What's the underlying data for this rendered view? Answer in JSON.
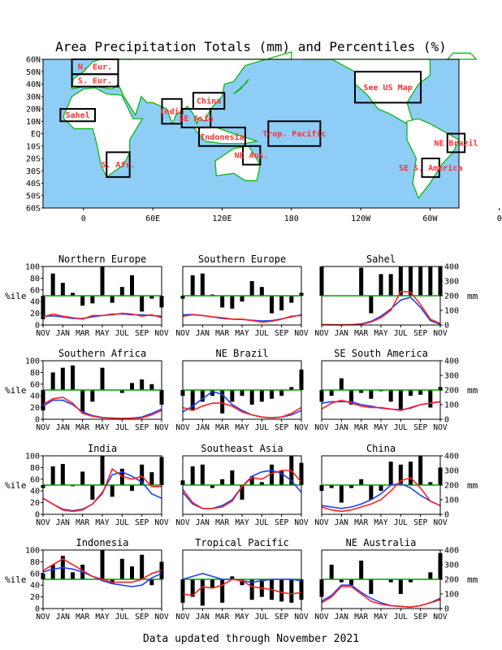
{
  "title": "Area Precipitation Totals (mm) and Percentiles (%)",
  "footer": "Data updated through November 2021",
  "map": {
    "lat_labels": [
      "60N",
      "50N",
      "40N",
      "30N",
      "20N",
      "10N",
      "EQ",
      "10S",
      "20S",
      "30S",
      "40S",
      "50S",
      "60S"
    ],
    "lon_labels": [
      "0",
      "60E",
      "120E",
      "180",
      "120W",
      "60W",
      "0"
    ],
    "colors": {
      "ocean": "#8ecdf5",
      "land": "#ffffff",
      "coast": "#00b400",
      "box": "#000000",
      "label": "#ff3030"
    },
    "regions": [
      {
        "label": "N. Eur.",
        "lon": [
          -10,
          30
        ],
        "lat": [
          48,
          60
        ]
      },
      {
        "label": "S. Eur.",
        "lon": [
          -10,
          30
        ],
        "lat": [
          38,
          48
        ]
      },
      {
        "label": "Sahel",
        "lon": [
          -20,
          10
        ],
        "lat": [
          10,
          20
        ]
      },
      {
        "label": "S. Afr.",
        "lon": [
          20,
          40
        ],
        "lat": [
          -35,
          -15
        ]
      },
      {
        "label": "India",
        "lon": [
          68,
          85
        ],
        "lat": [
          8,
          28
        ]
      },
      {
        "label": "China",
        "lon": [
          95,
          122
        ],
        "lat": [
          20,
          33
        ]
      },
      {
        "label": "SE Asia",
        "lon": [
          85,
          110
        ],
        "lat": [
          5,
          20
        ]
      },
      {
        "label": "Indonesia",
        "lon": [
          100,
          140
        ],
        "lat": [
          -10,
          5
        ]
      },
      {
        "label": "Trop. Pacific",
        "lon": [
          160,
          205
        ],
        "lat": [
          -10,
          10
        ]
      },
      {
        "label": "NE Aus.",
        "lon": [
          138,
          153
        ],
        "lat": [
          -25,
          -10
        ]
      },
      {
        "label": "See US Map",
        "lon": [
          235,
          292
        ],
        "lat": [
          25,
          50
        ]
      },
      {
        "label": "NE Brazil",
        "lon": [
          315,
          330
        ],
        "lat": [
          -15,
          0
        ]
      },
      {
        "label": "SE S. America",
        "lon": [
          293,
          308
        ],
        "lat": [
          -35,
          -20
        ]
      }
    ]
  },
  "chart_data": {
    "type": "bar+line",
    "months_label": [
      "NOV",
      "JAN",
      "MAR",
      "MAY",
      "JUL",
      "SEP",
      "NOV"
    ],
    "left_axis_label": "%ile",
    "right_axis_label": "mm",
    "left_ticks": [
      "0",
      "20",
      "40",
      "60",
      "80",
      "100"
    ],
    "right_ticks": [
      "0",
      "100",
      "200",
      "300",
      "400"
    ],
    "colors": {
      "bars": "#000000",
      "observed": "#ff2020",
      "normal": "#2040ff",
      "median_line": "#00a000"
    },
    "panels": [
      {
        "title": "Northern Europe",
        "percentile": [
          10,
          88,
          72,
          55,
          33,
          37,
          100,
          38,
          65,
          85,
          23,
          45,
          30
        ],
        "observed": [
          55,
          75,
          60,
          50,
          40,
          65,
          65,
          70,
          80,
          75,
          60,
          70,
          50
        ],
        "normal": [
          60,
          62,
          55,
          45,
          45,
          55,
          65,
          75,
          75,
          70,
          70,
          65,
          60
        ],
        "right": false,
        "left": true
      },
      {
        "title": "Southern Europe",
        "percentile": [
          45,
          85,
          88,
          52,
          30,
          28,
          40,
          75,
          65,
          20,
          25,
          38,
          55
        ],
        "observed": [
          60,
          70,
          65,
          55,
          50,
          40,
          40,
          30,
          20,
          25,
          40,
          60,
          65
        ],
        "normal": [
          70,
          72,
          65,
          55,
          45,
          40,
          38,
          32,
          28,
          30,
          42,
          55,
          70
        ],
        "right": false,
        "left": false
      },
      {
        "title": "Sahel",
        "percentile": [
          100,
          50,
          50,
          50,
          98,
          20,
          87,
          87,
          100,
          100,
          100,
          100,
          100
        ],
        "observed": [
          3,
          2,
          1,
          2,
          5,
          20,
          50,
          100,
          230,
          225,
          140,
          40,
          10
        ],
        "normal": [
          2,
          1,
          1,
          3,
          8,
          25,
          60,
          110,
          170,
          190,
          120,
          30,
          5
        ],
        "right": true,
        "left": false
      },
      {
        "title": "Southern Africa",
        "percentile": [
          15,
          80,
          88,
          92,
          12,
          30,
          88,
          50,
          45,
          62,
          68,
          60,
          25
        ],
        "observed": [
          100,
          140,
          150,
          110,
          40,
          20,
          10,
          8,
          5,
          8,
          10,
          30,
          60
        ],
        "normal": [
          90,
          130,
          130,
          100,
          50,
          25,
          12,
          8,
          6,
          8,
          15,
          40,
          70
        ],
        "right": false,
        "left": true
      },
      {
        "title": "NE Brazil",
        "percentile": [
          40,
          15,
          30,
          40,
          10,
          30,
          40,
          25,
          30,
          35,
          40,
          55,
          85
        ],
        "observed": [
          80,
          60,
          90,
          110,
          110,
          90,
          50,
          30,
          15,
          10,
          15,
          40,
          80
        ],
        "normal": [
          50,
          90,
          140,
          190,
          170,
          100,
          60,
          30,
          15,
          10,
          15,
          30,
          60
        ],
        "right": false,
        "left": false
      },
      {
        "title": "SE South America",
        "percentile": [
          30,
          40,
          70,
          25,
          45,
          35,
          48,
          30,
          15,
          40,
          42,
          20,
          55
        ],
        "observed": [
          70,
          110,
          130,
          110,
          90,
          80,
          80,
          70,
          60,
          80,
          100,
          110,
          120
        ],
        "normal": [
          110,
          120,
          120,
          120,
          100,
          90,
          75,
          70,
          65,
          75,
          100,
          110,
          120
        ],
        "right": true,
        "left": false
      },
      {
        "title": "India",
        "percentile": [
          45,
          82,
          86,
          48,
          73,
          25,
          100,
          30,
          78,
          40,
          85,
          72,
          98
        ],
        "observed": [
          110,
          70,
          30,
          20,
          30,
          70,
          140,
          310,
          260,
          240,
          260,
          190,
          190
        ],
        "normal": [
          110,
          70,
          35,
          25,
          35,
          70,
          150,
          270,
          290,
          260,
          220,
          140,
          110
        ],
        "right": false,
        "left": true
      },
      {
        "title": "Southeast Asia",
        "percentile": [
          58,
          82,
          85,
          45,
          60,
          75,
          25,
          65,
          55,
          85,
          75,
          100,
          88
        ],
        "observed": [
          170,
          80,
          40,
          40,
          50,
          90,
          190,
          250,
          240,
          280,
          300,
          300,
          220
        ],
        "normal": [
          150,
          70,
          40,
          40,
          60,
          100,
          190,
          260,
          290,
          300,
          280,
          230,
          150
        ],
        "right": false,
        "left": false
      },
      {
        "title": "China",
        "percentile": [
          40,
          45,
          20,
          45,
          60,
          25,
          40,
          90,
          85,
          90,
          100,
          55,
          80
        ],
        "observed": [
          50,
          30,
          20,
          30,
          50,
          70,
          100,
          160,
          230,
          250,
          180,
          90,
          60
        ],
        "normal": [
          60,
          50,
          40,
          50,
          70,
          100,
          140,
          200,
          210,
          180,
          130,
          90,
          60
        ],
        "right": true,
        "left": false
      },
      {
        "title": "Indonesia",
        "percentile": [
          60,
          75,
          90,
          62,
          75,
          50,
          100,
          42,
          85,
          72,
          92,
          40,
          80
        ],
        "observed": [
          260,
          300,
          340,
          300,
          260,
          220,
          200,
          180,
          180,
          180,
          200,
          240,
          260
        ],
        "normal": [
          250,
          270,
          280,
          270,
          250,
          220,
          190,
          170,
          160,
          150,
          160,
          210,
          240
        ],
        "right": false,
        "left": true
      },
      {
        "title": "Tropical Pacific",
        "percentile": [
          10,
          20,
          5,
          35,
          10,
          55,
          40,
          15,
          20,
          15,
          12,
          10,
          15
        ],
        "observed": [
          100,
          90,
          150,
          140,
          160,
          200,
          190,
          150,
          140,
          130,
          110,
          100,
          110
        ],
        "normal": [
          200,
          220,
          240,
          220,
          200,
          200,
          190,
          180,
          190,
          200,
          200,
          200,
          190
        ],
        "right": false,
        "left": false
      },
      {
        "title": "NE Australia",
        "percentile": [
          20,
          75,
          45,
          40,
          82,
          25,
          50,
          45,
          25,
          45,
          50,
          62,
          95
        ],
        "observed": [
          40,
          80,
          150,
          150,
          100,
          50,
          30,
          20,
          15,
          10,
          20,
          40,
          60
        ],
        "normal": [
          50,
          90,
          160,
          160,
          110,
          70,
          40,
          20,
          15,
          10,
          20,
          40,
          70
        ],
        "right": true,
        "left": false
      }
    ]
  }
}
